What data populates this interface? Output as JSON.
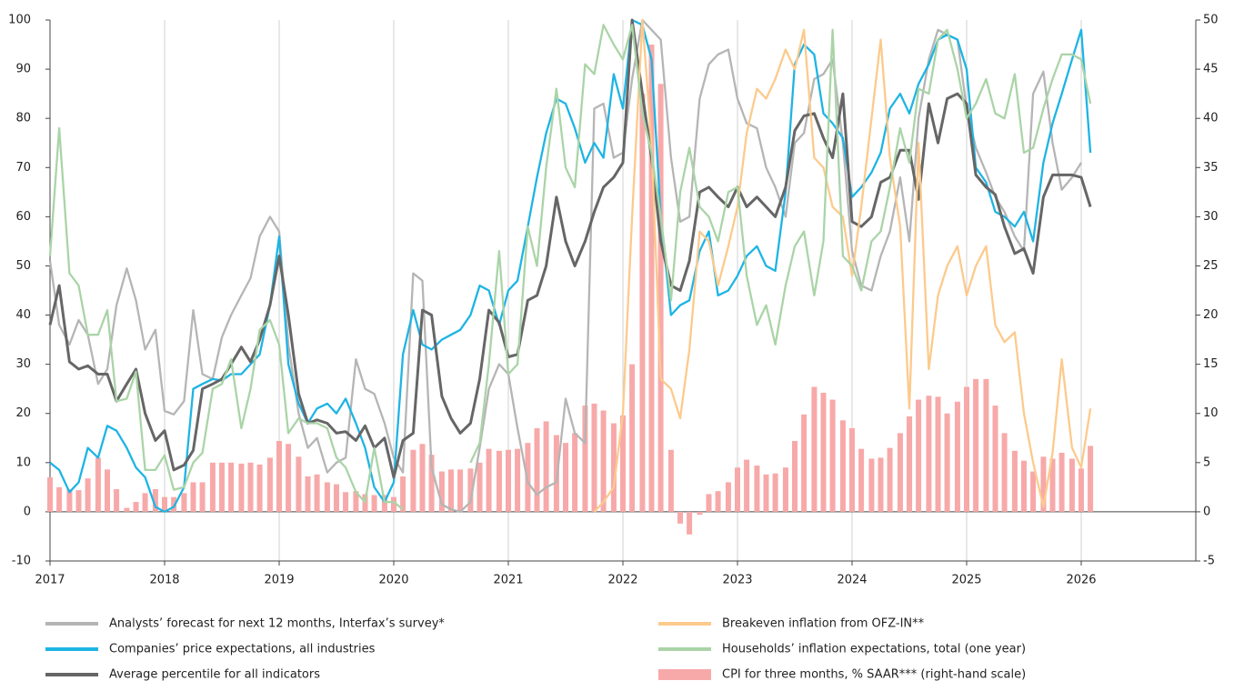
{
  "chart_data": {
    "type": "line",
    "x": [
      2017,
      2017.08,
      2017.17,
      2017.25,
      2017.33,
      2017.42,
      2017.5,
      2017.58,
      2017.67,
      2017.75,
      2017.83,
      2017.92,
      2018,
      2018.08,
      2018.17,
      2018.25,
      2018.33,
      2018.42,
      2018.5,
      2018.58,
      2018.67,
      2018.75,
      2018.83,
      2018.92,
      2019,
      2019.08,
      2019.17,
      2019.25,
      2019.33,
      2019.42,
      2019.5,
      2019.58,
      2019.67,
      2019.75,
      2019.83,
      2019.92,
      2020,
      2020.08,
      2020.17,
      2020.25,
      2020.33,
      2020.42,
      2020.5,
      2020.58,
      2020.67,
      2020.75,
      2020.83,
      2020.92,
      2021,
      2021.08,
      2021.17,
      2021.25,
      2021.33,
      2021.42,
      2021.5,
      2021.58,
      2021.67,
      2021.75,
      2021.83,
      2021.92,
      2022,
      2022.08,
      2022.17,
      2022.25,
      2022.33,
      2022.42,
      2022.5,
      2022.58,
      2022.67,
      2022.75,
      2022.83,
      2022.92,
      2023,
      2023.08,
      2023.17,
      2023.25,
      2023.33,
      2023.42,
      2023.5,
      2023.58,
      2023.67,
      2023.75,
      2023.83,
      2023.92,
      2024,
      2024.08,
      2024.17,
      2024.25,
      2024.33,
      2024.42,
      2024.5,
      2024.58,
      2024.67,
      2024.75,
      2024.83,
      2024.92,
      2025,
      2025.08,
      2025.17,
      2025.25,
      2025.33,
      2025.42,
      2025.5,
      2025.58,
      2025.67,
      2025.75,
      2025.83,
      2025.92,
      2026,
      2026.08
    ],
    "xlim": [
      2017,
      2027
    ],
    "xticks": [
      2017,
      2018,
      2019,
      2020,
      2021,
      2022,
      2023,
      2024,
      2025,
      2026
    ],
    "ylim": [
      -10,
      100
    ],
    "yticks": [
      -10,
      0,
      10,
      20,
      30,
      40,
      50,
      60,
      70,
      80,
      90,
      100
    ],
    "y2lim": [
      -5,
      50
    ],
    "y2ticks": [
      -5,
      0,
      5,
      10,
      15,
      20,
      25,
      30,
      35,
      40,
      45,
      50
    ],
    "series": [
      {
        "name": "CPI for three months, % SAAR*** (right-hand scale)",
        "type": "bar",
        "axis": "y2",
        "color": "#f7a9a9",
        "values": [
          3.5,
          2.5,
          2.3,
          2.2,
          3.4,
          5.5,
          4.3,
          2.3,
          0.4,
          1,
          1.9,
          2.3,
          1.5,
          1.5,
          1.9,
          3,
          3,
          5,
          5,
          5,
          4.9,
          5,
          4.8,
          5.5,
          7.2,
          6.9,
          5.6,
          3.6,
          3.8,
          3,
          2.8,
          2,
          2.1,
          1.8,
          1.7,
          1.7,
          1.5,
          3.6,
          6.3,
          6.9,
          5.8,
          4.1,
          4.3,
          4.3,
          4.4,
          5,
          6.4,
          6.2,
          6.3,
          6.4,
          7,
          8.5,
          9.2,
          7.8,
          7,
          8,
          10.8,
          11,
          10.3,
          9,
          9.8,
          15,
          42.5,
          47.5,
          43.5,
          6.3,
          -1.2,
          -2.3,
          -0.3,
          1.8,
          2.1,
          3,
          4.5,
          5.3,
          4.7,
          3.8,
          3.9,
          4.5,
          7.2,
          9.9,
          12.7,
          12.1,
          11.4,
          9.3,
          8.5,
          6.4,
          5.4,
          5.5,
          6.5,
          8,
          9.7,
          11.4,
          11.8,
          11.7,
          10,
          11.2,
          12.7,
          13.5,
          13.5,
          10.8,
          8,
          6.2,
          5.2,
          4.1,
          5.6,
          5.4,
          6,
          5.4,
          4.4,
          6.7
        ]
      },
      {
        "name": "Analysts’ forecast for next 12 months, Interfax’s survey*",
        "type": "line",
        "color": "#b5b5b5",
        "values": [
          51,
          38,
          34,
          39,
          36,
          26,
          29,
          42,
          49.5,
          43,
          33,
          37,
          20.5,
          19.8,
          22.5,
          41,
          28,
          27,
          35.5,
          40,
          44,
          47.5,
          56,
          60,
          57,
          34,
          20,
          13,
          15,
          8,
          10,
          11,
          31,
          25,
          24,
          18,
          11,
          8,
          48.5,
          47,
          9,
          1.5,
          0.5,
          0,
          2,
          13,
          25,
          30,
          28,
          17,
          6,
          3.5,
          5,
          6,
          23,
          16,
          14,
          82,
          83,
          72,
          73,
          88,
          100,
          98,
          96,
          72,
          59,
          60,
          84,
          91,
          93,
          94,
          84,
          79,
          78,
          70,
          66,
          60,
          75,
          77,
          88,
          89,
          92,
          75,
          53,
          46,
          45,
          52,
          57,
          68,
          55,
          80,
          92,
          98,
          97,
          96,
          82,
          74,
          69,
          64,
          61,
          56,
          53,
          85,
          89.5,
          75,
          65.5,
          68,
          71,
          null
        ]
      },
      {
        "name": "Companies’ price expectations, all industries",
        "type": "line",
        "color": "#1eb4e4",
        "values": [
          10,
          8.5,
          4,
          6,
          13,
          11,
          17.5,
          16.5,
          13,
          9,
          7,
          1,
          0,
          1,
          5,
          25,
          26,
          27,
          26.7,
          28,
          28,
          30,
          32,
          42,
          56,
          30,
          22,
          18,
          21,
          22,
          20,
          23,
          18,
          13,
          5,
          2,
          6,
          32,
          41,
          34,
          33,
          35,
          36,
          37,
          40,
          46,
          45,
          38,
          45,
          47,
          58,
          68,
          77,
          84,
          83,
          78,
          71,
          75,
          72,
          89,
          82,
          100,
          99,
          92,
          60,
          40,
          42,
          43,
          53,
          57,
          44,
          45,
          48,
          52,
          54,
          50,
          49,
          65,
          91,
          95,
          93,
          81,
          79,
          76,
          64,
          66,
          69,
          73,
          82,
          85,
          81,
          87,
          91,
          96,
          97,
          96,
          90,
          70,
          67,
          61,
          60,
          58,
          61,
          55,
          71,
          79,
          85,
          92,
          98,
          73
        ]
      },
      {
        "name": "Average percentile for all indicators",
        "type": "line",
        "color": "#666666",
        "values": [
          38,
          46,
          30.5,
          29,
          29.7,
          28,
          28,
          22.5,
          26,
          29,
          20,
          14.5,
          16.5,
          8.5,
          9.5,
          12.5,
          25,
          26,
          27,
          30,
          33.5,
          30.5,
          35,
          42,
          52,
          40,
          24,
          18,
          18.7,
          18,
          16,
          16.3,
          14.5,
          17.5,
          13,
          15,
          7,
          14.5,
          16,
          41,
          40,
          23.5,
          19,
          16,
          18,
          27,
          41,
          38.5,
          31.5,
          32,
          43,
          44,
          50,
          64,
          55,
          50,
          55,
          61,
          66,
          68,
          71,
          100,
          85,
          72,
          55,
          46,
          45,
          51,
          65,
          66,
          64,
          62,
          66,
          62,
          64,
          62,
          60,
          66,
          77.5,
          80.5,
          81,
          76,
          72,
          85,
          59,
          58,
          60,
          67,
          68,
          73.5,
          73.5,
          63.5,
          83,
          75,
          84,
          85,
          83,
          68.5,
          66,
          64.5,
          58,
          52.5,
          53.5,
          48.5,
          64,
          68.5,
          68.5,
          68.5,
          68,
          62
        ]
      },
      {
        "name": "Breakeven inflation from OFZ-IN**",
        "type": "line",
        "color": "#fcca8c",
        "values": [
          null,
          null,
          null,
          null,
          null,
          null,
          null,
          null,
          null,
          null,
          null,
          null,
          null,
          null,
          null,
          null,
          null,
          null,
          null,
          null,
          null,
          null,
          null,
          null,
          null,
          null,
          null,
          null,
          null,
          null,
          null,
          null,
          null,
          null,
          null,
          null,
          null,
          null,
          null,
          null,
          null,
          null,
          null,
          null,
          null,
          null,
          null,
          null,
          null,
          null,
          null,
          null,
          null,
          null,
          null,
          null,
          null,
          0,
          2,
          5,
          20,
          60,
          100,
          75,
          27,
          25,
          19,
          33,
          57,
          55,
          46,
          54,
          62,
          77,
          86,
          84,
          88,
          94,
          90,
          98,
          72,
          70,
          62,
          60,
          48,
          62,
          80,
          96,
          72,
          58,
          21,
          75,
          29,
          44,
          50,
          54,
          44,
          50,
          54,
          38,
          34.5,
          36.5,
          20,
          10,
          1,
          12,
          31,
          13,
          9,
          21
        ]
      },
      {
        "name": "Households’ inflation expectations, total (one year)",
        "type": "line",
        "color": "#aad4a7",
        "values": [
          52,
          78,
          48.5,
          46,
          36,
          36,
          41,
          22.5,
          23,
          28.5,
          8.5,
          8.5,
          11.5,
          4.5,
          5,
          10,
          12,
          25,
          26,
          31,
          17,
          25,
          37,
          39,
          34,
          16,
          19,
          18,
          18,
          17,
          11,
          9,
          4,
          2,
          13,
          2,
          2,
          0.5,
          null,
          null,
          null,
          null,
          null,
          null,
          10,
          14,
          30,
          53,
          28,
          30,
          58,
          50,
          70,
          86,
          70,
          66,
          91,
          89,
          99,
          95,
          92,
          99,
          81,
          73,
          60,
          43,
          65,
          74,
          62,
          60,
          55,
          65,
          66,
          48,
          38,
          42,
          34,
          46,
          54,
          57,
          44,
          55,
          98,
          52,
          50,
          45,
          55,
          57,
          66,
          78,
          71,
          86,
          85,
          96,
          98,
          90,
          80,
          83,
          88,
          81,
          80,
          89,
          73,
          74,
          82,
          88,
          93,
          93,
          92,
          83
        ]
      }
    ],
    "grid": true
  }
}
